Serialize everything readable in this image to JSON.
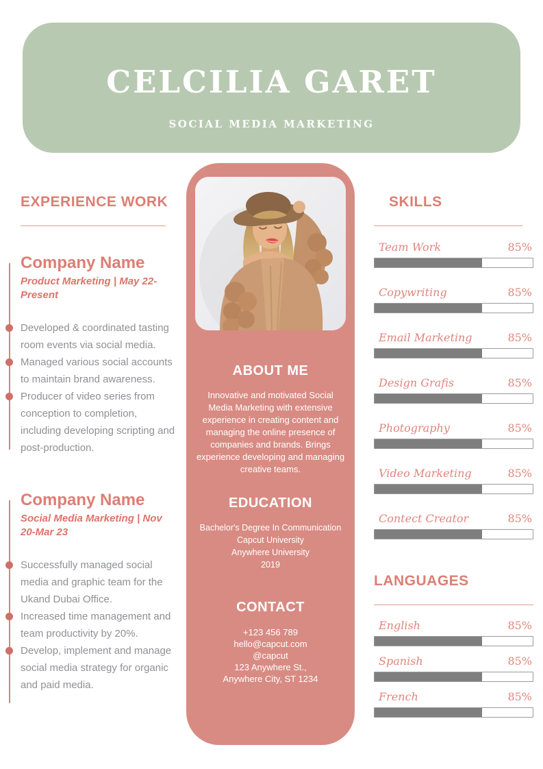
{
  "header": {
    "name": "CELCILIA GARET",
    "subtitle": "SOCIAL MEDIA MARKETING"
  },
  "experience": {
    "title": "EXPERIENCE WORK",
    "entries": [
      {
        "company": "Company Name",
        "role_dates": "Product Marketing | May 22-Present",
        "bullets": [
          "Developed & coordinated tasting room events via social media.",
          "Managed various social accounts to maintain brand awareness.",
          "Producer of video series from conception to completion, including developing scripting and post-production."
        ]
      },
      {
        "company": "Company Name",
        "role_dates": "Social Media Marketing | Nov 20-Mar 23",
        "bullets": [
          "Successfully managed social media and graphic team for the Ukand Dubai Office.",
          "Increased time management and team productivity by 20%.",
          "Develop, implement and manage social media strategy for organic and paid media."
        ]
      }
    ]
  },
  "profile": {
    "photo_description": "woman-with-hat-portrait",
    "about": {
      "title": "ABOUT ME",
      "text": "Innovative and motivated Social Media Marketing with extensive experience in creating content and managing the online presence of companies and brands. Brings experience developing and managing creative teams."
    },
    "education": {
      "title": "EDUCATION",
      "lines": [
        "Bachelor's Degree In Communication",
        "Capcut University",
        "Anywhere University",
        "2019"
      ]
    },
    "contact": {
      "title": "CONTACT",
      "lines": [
        "+123  456 789",
        "hello@capcut.com",
        "@capcut",
        "123 Anywhere St.,",
        "Anywhere City, ST 1234"
      ]
    }
  },
  "skills": {
    "title": "SKILLS",
    "items": [
      {
        "label": "Team Work",
        "percent": "85%",
        "bar_fill": 68
      },
      {
        "label": "Copywriting",
        "percent": "85%",
        "bar_fill": 68
      },
      {
        "label": "Email Marketing",
        "percent": "85%",
        "bar_fill": 68
      },
      {
        "label": "Design Grafis",
        "percent": "85%",
        "bar_fill": 68
      },
      {
        "label": "Photography",
        "percent": "85%",
        "bar_fill": 68
      },
      {
        "label": "Video Marketing",
        "percent": "85%",
        "bar_fill": 68
      },
      {
        "label": "Contect Creator",
        "percent": "85%",
        "bar_fill": 68
      }
    ]
  },
  "languages": {
    "title": "LANGUAGES",
    "items": [
      {
        "label": "English",
        "percent": "85%",
        "bar_fill": 68
      },
      {
        "label": "Spanish",
        "percent": "85%",
        "bar_fill": 68
      },
      {
        "label": "French",
        "percent": "85%",
        "bar_fill": 68
      }
    ]
  },
  "colors": {
    "sage_green": "#b8c9b1",
    "panel_pink": "#d88b83",
    "accent_pink": "#dd7e74",
    "bar_gray": "#7e7e7e",
    "body_text_gray": "#8f9094",
    "white": "#ffffff"
  }
}
